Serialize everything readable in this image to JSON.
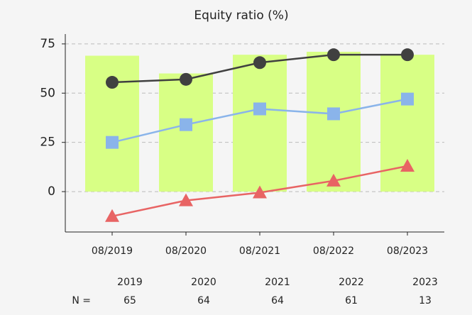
{
  "chart_data": {
    "type": "bar",
    "title": "Equity ratio (%)",
    "categories": [
      "08/2019",
      "08/2020",
      "08/2021",
      "08/2022",
      "08/2023"
    ],
    "series": [
      {
        "type": "bar",
        "color": "#d8ff85",
        "values": [
          69,
          60,
          69.5,
          71,
          69.5
        ]
      },
      {
        "type": "line",
        "marker": "circle",
        "color": "#404040",
        "values": [
          55.5,
          57,
          65.5,
          69.5,
          69.5
        ]
      },
      {
        "type": "line",
        "marker": "square",
        "color": "#8ab4ea",
        "values": [
          25,
          34,
          42,
          39.5,
          47
        ]
      },
      {
        "type": "line",
        "marker": "triangle",
        "color": "#e86464",
        "values": [
          -12.5,
          -4.5,
          -0.5,
          5.5,
          13
        ]
      }
    ],
    "ylim": [
      -20.5,
      80
    ],
    "yticks": [
      0,
      25,
      50,
      75
    ],
    "grid": true,
    "table": {
      "years": [
        "2019",
        "2020",
        "2021",
        "2022",
        "2023"
      ],
      "n_label": "N =",
      "n": [
        65,
        64,
        64,
        61,
        13
      ]
    }
  }
}
